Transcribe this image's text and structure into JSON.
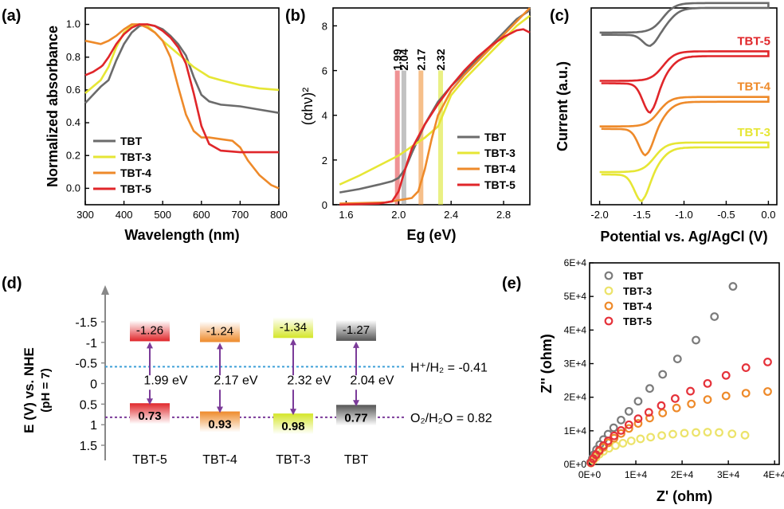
{
  "panels": {
    "a": "(a)",
    "b": "(b)",
    "c": "(c)",
    "d": "(d)",
    "e": "(e)"
  },
  "colors": {
    "TBT": "#6b6b6b",
    "TBT-3": "#e6e635",
    "TBT-4": "#ee8a2a",
    "TBT-5": "#e0262a",
    "hline": "#3fa0d8",
    "oline": "#7b3b99",
    "arrow": "#7b3b99"
  },
  "chart_data": [
    {
      "id": "a",
      "type": "line",
      "xlabel": "Wavelength (nm)",
      "ylabel": "Normalized absorbance",
      "xlim": [
        300,
        800
      ],
      "ylim": [
        -0.1,
        1.1
      ],
      "xticks": [
        300,
        400,
        500,
        600,
        700,
        800
      ],
      "yticks": [
        0.0,
        0.2,
        0.4,
        0.6,
        0.8,
        1.0
      ],
      "ytick_labels": [
        "0.0",
        "0.2",
        "0.4",
        "0.6",
        "0.8",
        "1.0"
      ],
      "legend": "lower-left",
      "series": [
        {
          "name": "TBT",
          "x": [
            300,
            320,
            340,
            360,
            380,
            400,
            420,
            440,
            460,
            480,
            500,
            520,
            540,
            560,
            580,
            600,
            620,
            650,
            700,
            750,
            800
          ],
          "y": [
            0.52,
            0.57,
            0.62,
            0.66,
            0.78,
            0.88,
            0.95,
            0.99,
            1.0,
            0.99,
            0.97,
            0.93,
            0.88,
            0.81,
            0.68,
            0.57,
            0.53,
            0.51,
            0.5,
            0.48,
            0.46
          ]
        },
        {
          "name": "TBT-3",
          "x": [
            300,
            320,
            340,
            360,
            380,
            400,
            420,
            440,
            460,
            480,
            500,
            520,
            540,
            560,
            580,
            600,
            620,
            650,
            700,
            750,
            800
          ],
          "y": [
            0.58,
            0.62,
            0.66,
            0.74,
            0.86,
            0.95,
            0.99,
            1.0,
            0.99,
            0.95,
            0.9,
            0.86,
            0.82,
            0.78,
            0.74,
            0.71,
            0.68,
            0.66,
            0.63,
            0.61,
            0.6
          ]
        },
        {
          "name": "TBT-4",
          "x": [
            300,
            320,
            340,
            360,
            380,
            400,
            420,
            440,
            460,
            480,
            500,
            520,
            540,
            560,
            580,
            600,
            620,
            650,
            680,
            700,
            720,
            750,
            780,
            800
          ],
          "y": [
            0.9,
            0.89,
            0.88,
            0.9,
            0.93,
            0.97,
            1.0,
            1.0,
            0.98,
            0.95,
            0.9,
            0.8,
            0.62,
            0.45,
            0.35,
            0.31,
            0.31,
            0.3,
            0.29,
            0.25,
            0.17,
            0.08,
            0.02,
            0.0
          ]
        },
        {
          "name": "TBT-5",
          "x": [
            300,
            320,
            340,
            345,
            360,
            380,
            400,
            420,
            440,
            460,
            480,
            500,
            520,
            540,
            560,
            580,
            600,
            620,
            650,
            700,
            750,
            800
          ],
          "y": [
            0.69,
            0.71,
            0.74,
            0.75,
            0.8,
            0.88,
            0.94,
            0.98,
            1.0,
            1.0,
            0.99,
            0.96,
            0.92,
            0.86,
            0.76,
            0.58,
            0.38,
            0.27,
            0.23,
            0.22,
            0.22,
            0.22
          ]
        }
      ]
    },
    {
      "id": "b",
      "type": "line",
      "xlabel": "Eg (eV)",
      "ylabel": "(αhν)²",
      "xlim": [
        1.5,
        3.0
      ],
      "ylim": [
        0,
        8.8
      ],
      "xticks": [
        1.6,
        2.0,
        2.4,
        2.8
      ],
      "yticks": [
        0,
        2,
        4,
        6,
        8
      ],
      "xtick_labels": [
        "1.6",
        "2.0",
        "2.4",
        "2.8"
      ],
      "bandgap_labels": [
        "1.99",
        "2.04",
        "2.17",
        "2.32"
      ],
      "bandgap_values": [
        1.99,
        2.04,
        2.17,
        2.32
      ],
      "legend": "lower-right",
      "series": [
        {
          "name": "TBT",
          "x": [
            1.55,
            1.7,
            1.85,
            1.95,
            2.0,
            2.05,
            2.1,
            2.2,
            2.3,
            2.4,
            2.5,
            2.6,
            2.7,
            2.8,
            2.9,
            3.0
          ],
          "y": [
            0.55,
            0.7,
            0.9,
            1.05,
            1.2,
            1.6,
            2.3,
            3.6,
            4.6,
            5.3,
            5.9,
            6.5,
            7.1,
            7.7,
            8.3,
            8.7
          ]
        },
        {
          "name": "TBT-3",
          "x": [
            1.55,
            1.7,
            1.85,
            2.0,
            2.1,
            2.2,
            2.3,
            2.35,
            2.4,
            2.5,
            2.6,
            2.7,
            2.8,
            2.9,
            3.0
          ],
          "y": [
            0.9,
            1.3,
            1.75,
            2.2,
            2.6,
            3.0,
            3.5,
            4.2,
            4.9,
            5.6,
            6.2,
            6.8,
            7.4,
            8.0,
            8.45
          ]
        },
        {
          "name": "TBT-4",
          "x": [
            1.55,
            1.9,
            2.0,
            2.1,
            2.15,
            2.2,
            2.25,
            2.3,
            2.4,
            2.5,
            2.6,
            2.7,
            2.8,
            2.9,
            3.0
          ],
          "y": [
            0.05,
            0.1,
            0.2,
            0.3,
            0.6,
            1.6,
            2.9,
            4.0,
            5.1,
            5.8,
            6.4,
            7.0,
            7.6,
            8.2,
            8.8
          ]
        },
        {
          "name": "TBT-5",
          "x": [
            1.55,
            1.85,
            1.95,
            2.0,
            2.05,
            2.1,
            2.2,
            2.3,
            2.4,
            2.5,
            2.6,
            2.7,
            2.8,
            2.9,
            2.95,
            3.0
          ],
          "y": [
            0.0,
            0.05,
            0.15,
            0.6,
            1.6,
            2.5,
            3.6,
            4.5,
            5.3,
            6.0,
            6.6,
            7.1,
            7.5,
            7.8,
            7.85,
            7.7
          ]
        }
      ]
    },
    {
      "id": "c",
      "type": "line",
      "xlabel": "Potential vs. Ag/AgCl (V)",
      "ylabel": "Current (a.u.)",
      "xlim": [
        -2.1,
        0.1
      ],
      "xticks": [
        -2.0,
        -1.5,
        -1.0,
        -0.5,
        0.0
      ],
      "xtick_labels": [
        "-2.0",
        "-1.5",
        "-1.0",
        "-0.5",
        "0.0"
      ],
      "series": [
        {
          "name": "TBT",
          "offset": 3.0,
          "reduction": -1.4,
          "peak_depth": 0.22
        },
        {
          "name": "TBT-5",
          "offset": 2.1,
          "reduction": -1.4,
          "peak_depth": 0.55
        },
        {
          "name": "TBT-4",
          "offset": 1.25,
          "reduction": -1.45,
          "peak_depth": 0.5
        },
        {
          "name": "TBT-3",
          "offset": 0.4,
          "reduction": -1.5,
          "peak_depth": 0.5
        }
      ]
    },
    {
      "id": "d",
      "type": "diagram",
      "ylabel": "E (V)  vs. NHE",
      "ylabel2": "(pH = 7)",
      "ylim": [
        1.7,
        -2.3
      ],
      "yticks": [
        -1.5,
        -1,
        -0.5,
        0,
        0.5,
        1,
        1.5
      ],
      "ytick_labels": [
        "-1.5",
        "-1",
        "-0.5",
        "0",
        "0.5",
        "1",
        "1.5"
      ],
      "h2_label": "H⁺/H₂ = -0.41",
      "h2_value": -0.41,
      "o2_label": "O₂/H₂O = 0.82",
      "o2_value": 0.82,
      "materials": [
        {
          "name": "TBT-5",
          "cb": -1.26,
          "vb": 0.73,
          "gap": "1.99 eV",
          "cb_label": "-1.26",
          "vb_label": "0.73",
          "color": "#e0262a"
        },
        {
          "name": "TBT-4",
          "cb": -1.24,
          "vb": 0.93,
          "gap": "2.17 eV",
          "cb_label": "-1.24",
          "vb_label": "0.93",
          "color": "#ee8a2a"
        },
        {
          "name": "TBT-3",
          "cb": -1.34,
          "vb": 0.98,
          "gap": "2.32 eV",
          "cb_label": "-1.34",
          "vb_label": "0.98",
          "color": "#d4e629"
        },
        {
          "name": "TBT",
          "cb": -1.27,
          "vb": 0.77,
          "gap": "2.04 eV",
          "cb_label": "-1.27",
          "vb_label": "0.77",
          "color": "#555555"
        }
      ]
    },
    {
      "id": "e",
      "type": "scatter",
      "xlabel": "Z' (ohm)",
      "ylabel": "Z'' (ohm)",
      "xlim": [
        0,
        41000
      ],
      "ylim": [
        0,
        60000
      ],
      "xticks": [
        0,
        10000,
        20000,
        30000,
        40000
      ],
      "yticks": [
        0,
        10000,
        20000,
        30000,
        40000,
        50000,
        60000
      ],
      "xtick_labels": [
        "0E+0",
        "1E+4",
        "2E+4",
        "3E+4",
        "4E+4"
      ],
      "ytick_labels": [
        "0E+0",
        "1E+4",
        "2E+4",
        "3E+4",
        "4E+4",
        "5E+4",
        "6E+4"
      ],
      "legend": "top-left",
      "series": [
        {
          "name": "TBT",
          "x": [
            200,
            600,
            1000,
            1500,
            2200,
            3000,
            4000,
            5200,
            6800,
            8500,
            10500,
            13000,
            15800,
            19000,
            23000,
            27000,
            31000
          ],
          "y": [
            600,
            1800,
            3000,
            4400,
            5900,
            7400,
            9000,
            10900,
            13200,
            15800,
            18800,
            22600,
            26800,
            31400,
            37000,
            44000,
            53000
          ]
        },
        {
          "name": "TBT-3",
          "x": [
            300,
            800,
            1400,
            2100,
            3000,
            4200,
            5600,
            7200,
            9000,
            11000,
            13200,
            15600,
            18000,
            20500,
            23000,
            25500,
            28000,
            30800,
            33600
          ],
          "y": [
            400,
            1200,
            2100,
            3000,
            3900,
            4800,
            5600,
            6300,
            7000,
            7600,
            8100,
            8600,
            9000,
            9300,
            9500,
            9600,
            9500,
            9100,
            8700
          ]
        },
        {
          "name": "TBT-4",
          "x": [
            300,
            800,
            1400,
            2100,
            3000,
            4000,
            5300,
            6800,
            8500,
            10500,
            13000,
            15800,
            18800,
            22000,
            25500,
            29500,
            33800,
            38500
          ],
          "y": [
            500,
            1600,
            2700,
            3900,
            5100,
            6400,
            7800,
            9200,
            10700,
            12200,
            13800,
            15300,
            16800,
            18000,
            19300,
            20400,
            21200,
            21700
          ]
        },
        {
          "name": "TBT-5",
          "x": [
            300,
            800,
            1400,
            2100,
            3000,
            4000,
            5300,
            6800,
            8500,
            10500,
            12800,
            15500,
            18500,
            21800,
            25500,
            29500,
            33800,
            38500
          ],
          "y": [
            500,
            1700,
            2900,
            4200,
            5600,
            7000,
            8500,
            10100,
            11800,
            13600,
            15500,
            17500,
            19600,
            21800,
            24100,
            26500,
            28800,
            30500
          ]
        }
      ]
    }
  ]
}
